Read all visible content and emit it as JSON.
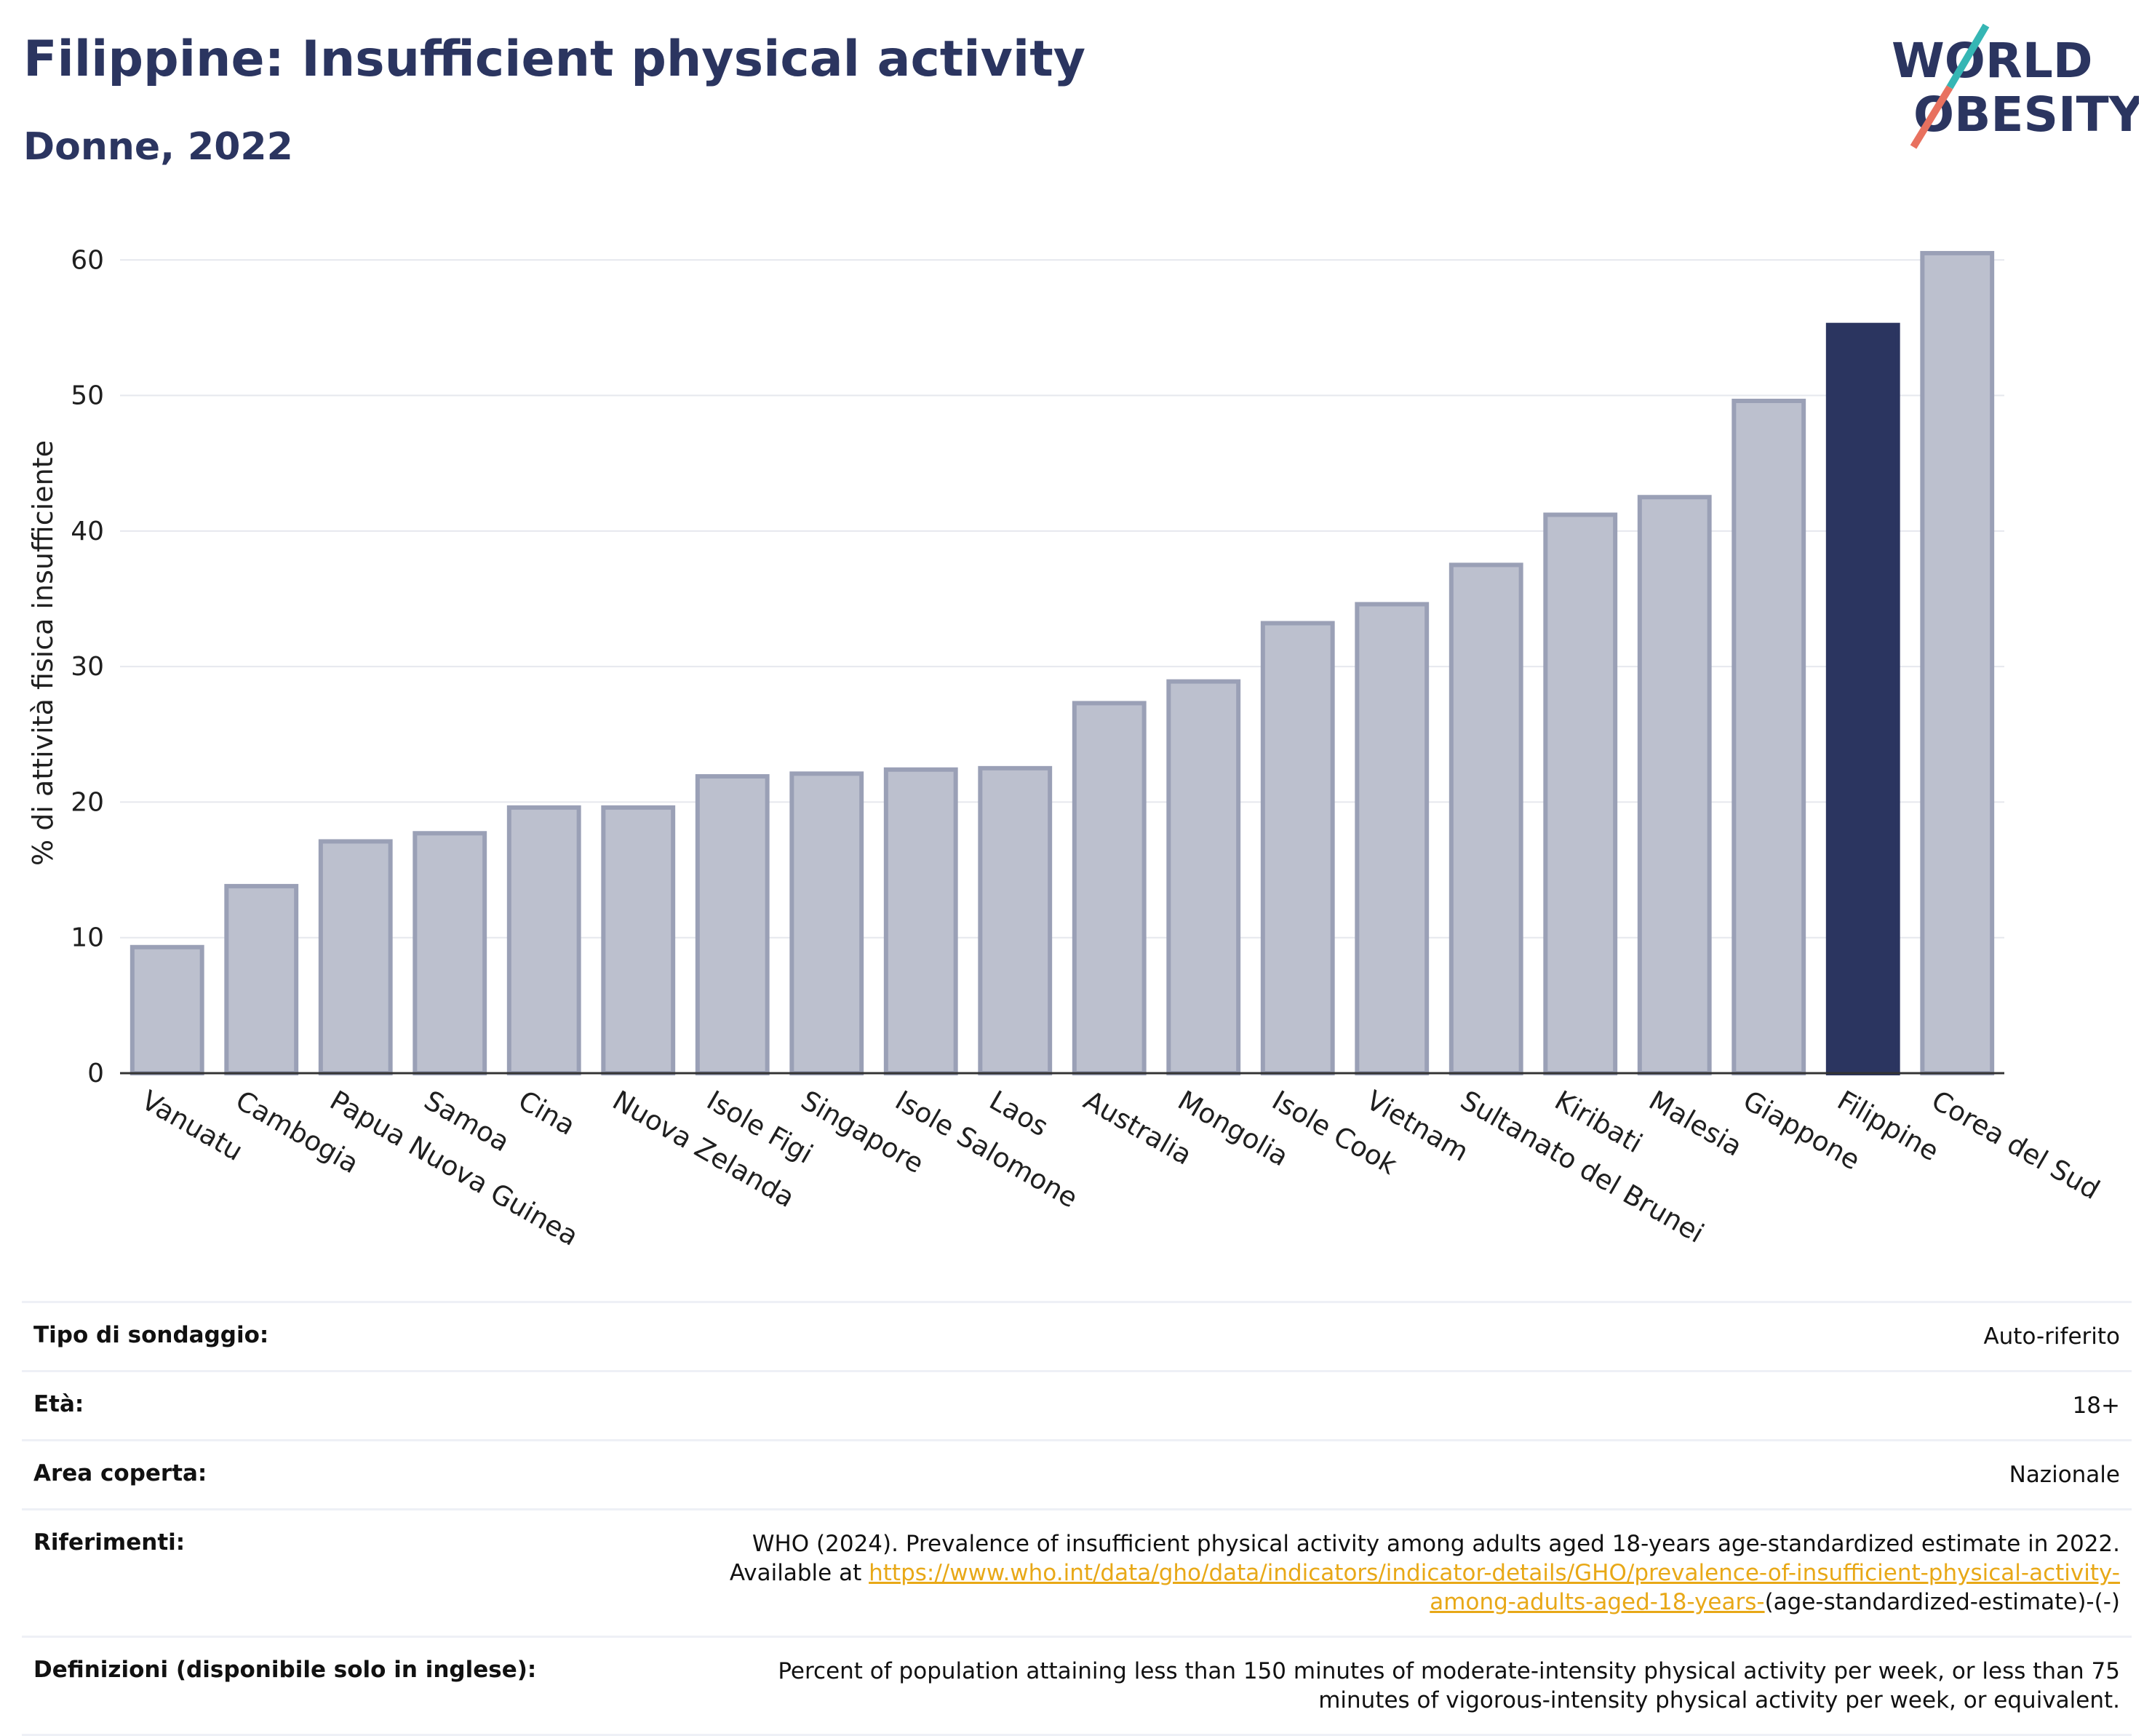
{
  "header": {
    "title": "Filippine: Insufficient physical activity",
    "subtitle": "Donne, 2022",
    "logo_line1": "WORLD",
    "logo_line2": "OBESITY"
  },
  "colors": {
    "highlight": "#2b3560",
    "bar_fill": "#bcc0ce",
    "bar_stroke": "#9aa0b6",
    "title": "#2b3560",
    "link": "#e8a817",
    "logo_teal": "#35b6b4",
    "logo_coral": "#e8715f"
  },
  "chart_data": {
    "type": "bar",
    "title": "",
    "xlabel": "",
    "ylabel": "% di attività fisica insufficiente",
    "ylim": [
      0,
      62
    ],
    "yticks": [
      0,
      10,
      20,
      30,
      40,
      50,
      60
    ],
    "grid": true,
    "categories": [
      "Vanuatu",
      "Cambogia",
      "Papua Nuova Guinea",
      "Samoa",
      "Cina",
      "Nuova Zelanda",
      "Isole Figi",
      "Singapore",
      "Isole Salomone",
      "Laos",
      "Australia",
      "Mongolia",
      "Isole Cook",
      "Vietnam",
      "Sultanato del Brunei",
      "Kiribati",
      "Malesia",
      "Giappone",
      "Filippine",
      "Corea del Sud"
    ],
    "values": [
      9.3,
      13.8,
      17.1,
      17.7,
      19.6,
      19.6,
      21.9,
      22.1,
      22.4,
      22.5,
      27.3,
      28.9,
      33.2,
      34.6,
      37.5,
      41.2,
      42.5,
      49.6,
      55.2,
      60.5
    ],
    "highlight": "Filippine"
  },
  "info": {
    "survey_label": "Tipo di sondaggio:",
    "survey_value": "Auto-riferito",
    "age_label": "Età:",
    "age_value": "18+",
    "area_label": "Area coperta:",
    "area_value": "Nazionale",
    "refs_label": "Riferimenti:",
    "refs_text": "WHO (2024). Prevalence of insufficient physical activity among adults aged 18-years age-standardized estimate in 2022. Available at",
    "refs_link": "https://www.who.int/data/gho/data/indicators/indicator-details/GHO/prevalence-of-insufficient-physical-activity-among-adults-aged-18-years-",
    "refs_tail": "(age-standardized-estimate)-(-)",
    "defs_label": "Definizioni (disponibile solo in inglese):",
    "defs_value": "Percent of population attaining less than 150 minutes of moderate-intensity physical activity per week, or less than 75 minutes of vigorous-intensity physical activity per week, or equivalent."
  }
}
